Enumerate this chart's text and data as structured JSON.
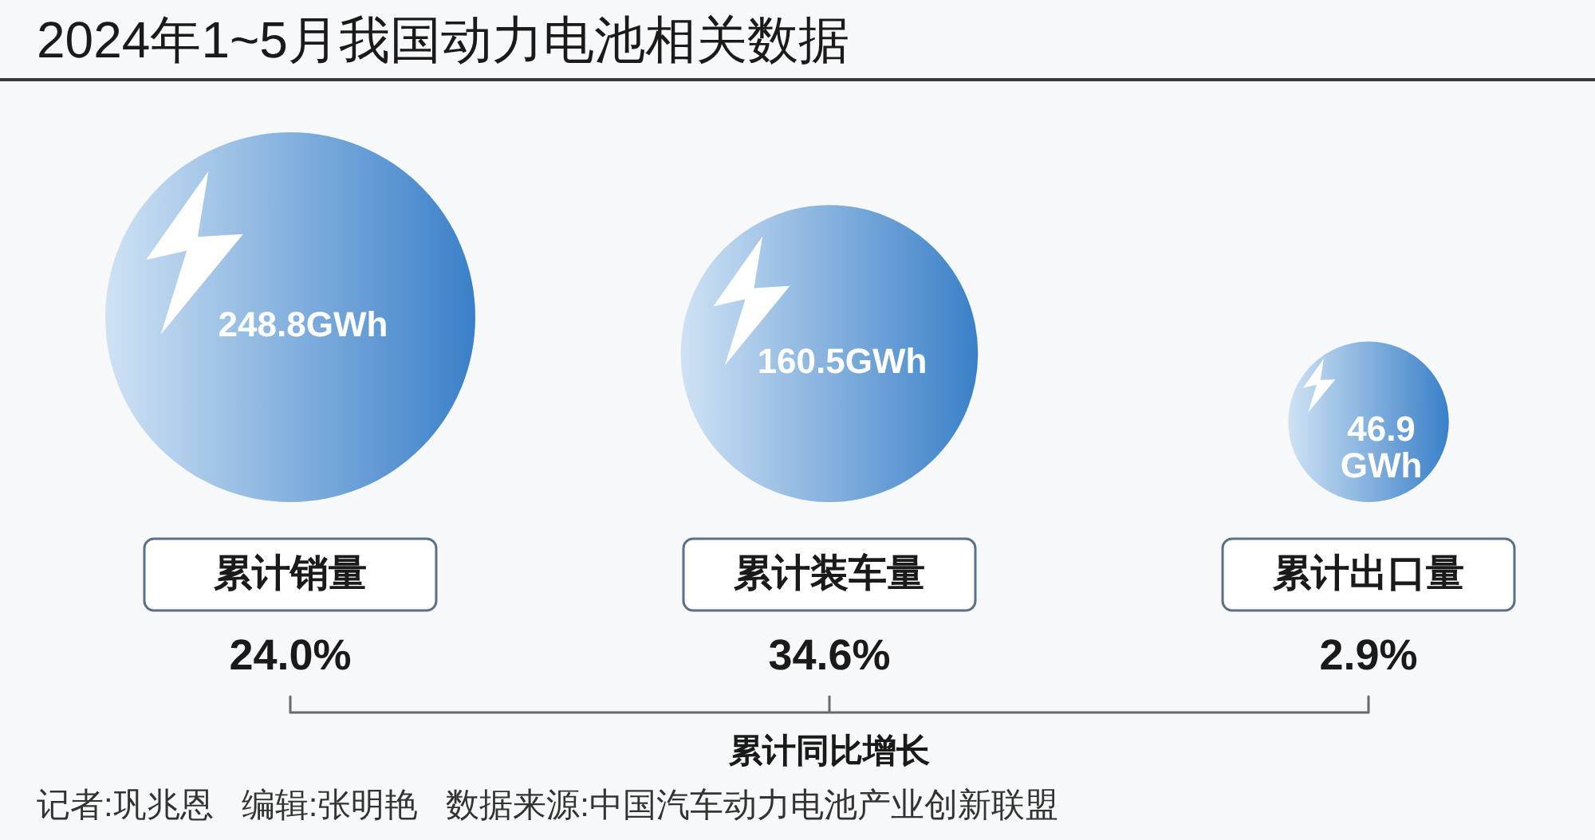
{
  "chart_data": {
    "type": "other",
    "title": "2024年1~5月我国动力电池相关数据",
    "categories": [
      "累计销量",
      "累计装车量",
      "累计出口量"
    ],
    "series": [
      {
        "color": "#3a80c8",
        "values": [
          248.8,
          160.5,
          46.9
        ],
        "value_labels": [
          "248.8GWh",
          "160.5GWh",
          "46.9\nGWh"
        ]
      },
      {
        "name": "累计同比增长",
        "values": [
          24.0,
          34.6,
          2.9
        ],
        "value_labels": [
          "24.0%",
          "34.6%",
          "2.9%"
        ]
      }
    ],
    "annotations": [
      "记者:巩兆恩   编辑:张明艳   数据来源:中国汽车动力电池产业创新联盟"
    ]
  }
}
